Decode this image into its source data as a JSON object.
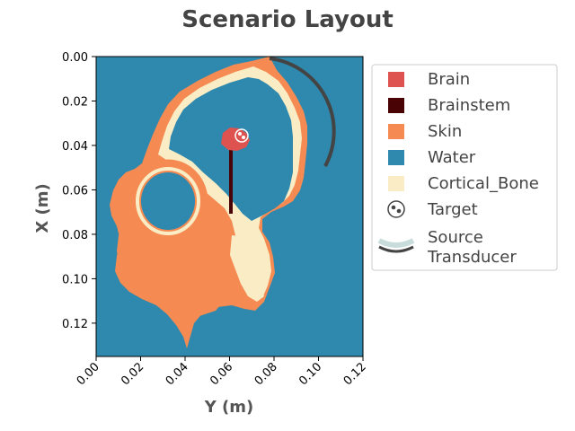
{
  "chart_data": {
    "type": "heatmap",
    "title": "Scenario Layout",
    "xlabel": "Y (m)",
    "ylabel": "X (m)",
    "xlim": [
      0.0,
      0.12
    ],
    "ylim": [
      0.0,
      0.135
    ],
    "y_inverted": true,
    "xticks": [
      "0.00",
      "0.02",
      "0.04",
      "0.06",
      "0.08",
      "0.10",
      "0.12"
    ],
    "yticks": [
      "0.00",
      "0.02",
      "0.04",
      "0.06",
      "0.08",
      "0.10",
      "0.12"
    ],
    "legend_position": "outside-right",
    "categories": [
      {
        "name": "Brain",
        "color": "#de5350"
      },
      {
        "name": "Brainstem",
        "color": "#4a0305"
      },
      {
        "name": "Skin",
        "color": "#f58b52"
      },
      {
        "name": "Water",
        "color": "#2f88ad"
      },
      {
        "name": "Cortical_Bone",
        "color": "#faedc6"
      }
    ],
    "markers": [
      {
        "name": "Target",
        "y": 0.064,
        "x": 0.036
      },
      {
        "name": "Source\nTransducer",
        "center_y": 0.062,
        "center_x": 0.052,
        "radius": 0.046,
        "arc_start_deg": -60,
        "arc_end_deg": -5
      }
    ]
  }
}
